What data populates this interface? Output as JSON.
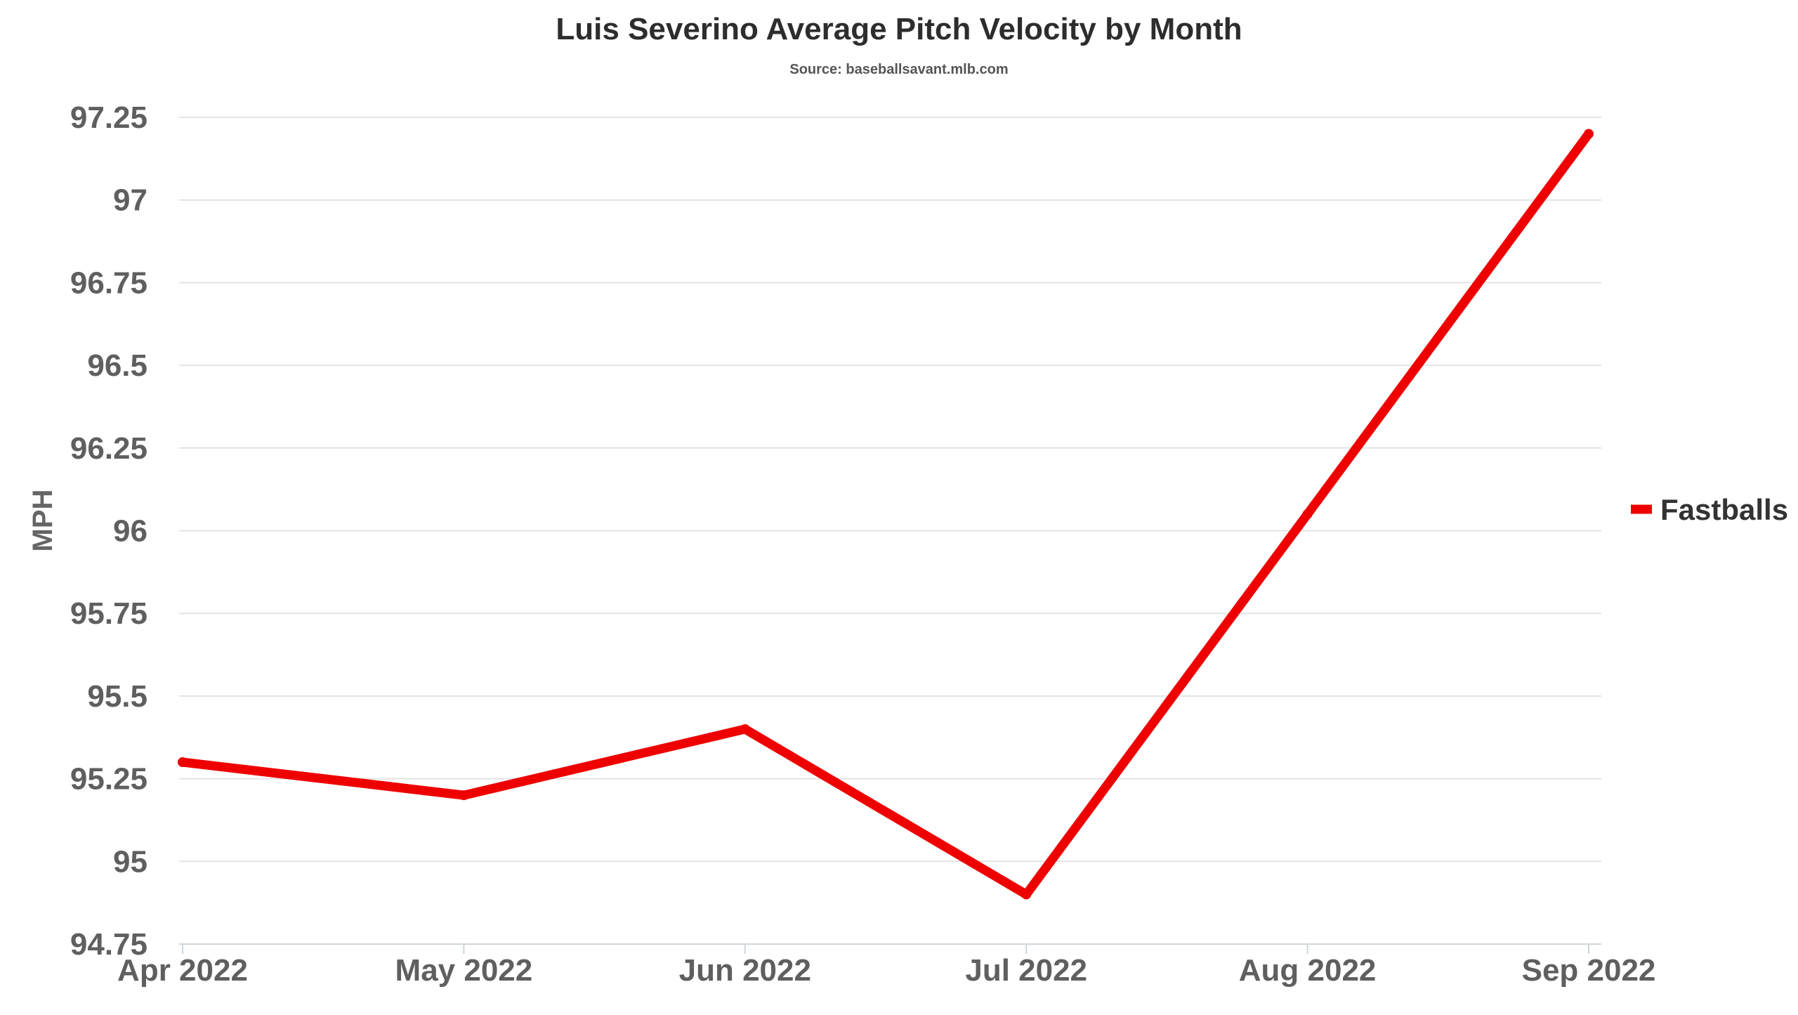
{
  "chart_data": {
    "type": "line",
    "title": "Luis Severino Average Pitch Velocity by Month",
    "subtitle": "Source: baseballsavant.mlb.com",
    "xlabel": "",
    "ylabel": "MPH",
    "categories": [
      "Apr 2022",
      "May 2022",
      "Jun 2022",
      "Jul 2022",
      "Aug 2022",
      "Sep 2022"
    ],
    "series": [
      {
        "name": "Fastballs",
        "color": "#ee0000",
        "values": [
          95.3,
          95.2,
          95.4,
          94.9,
          96.05,
          97.2
        ]
      }
    ],
    "ylim": [
      94.75,
      97.25
    ],
    "yticks": [
      "94.75",
      "95",
      "95.25",
      "95.5",
      "95.75",
      "96",
      "96.25",
      "96.5",
      "96.75",
      "97",
      "97.25"
    ],
    "grid": true,
    "legend_position": "right"
  }
}
